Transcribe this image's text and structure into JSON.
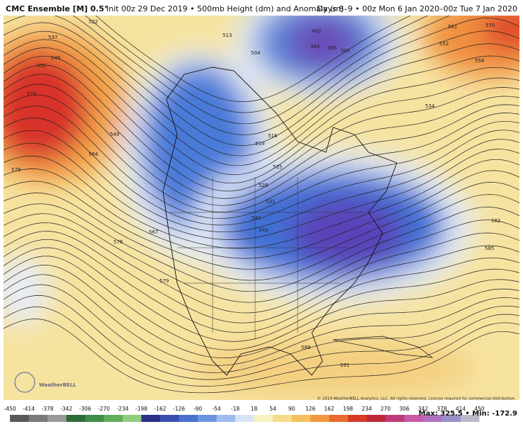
{
  "header": {
    "title": "CMC Ensemble [M] 0.5°",
    "subtitle": "Init 00z 29 Dec 2019 • 500mb Height (dm) and Anomaly (m)",
    "valid": "Days 8–9 • 00z Mon 6 Jan 2020–00z Tue 7 Jan 2020"
  },
  "map": {
    "contour_labels": [
      "522",
      "537",
      "546",
      "555",
      "573",
      "579",
      "564",
      "549",
      "513",
      "504",
      "492",
      "483",
      "495",
      "501",
      "561",
      "570",
      "552",
      "558",
      "534",
      "516",
      "519",
      "525",
      "528",
      "531",
      "540",
      "543",
      "567",
      "576",
      "579",
      "582",
      "585",
      "588",
      "591"
    ]
  },
  "colorbar": {
    "ticks": [
      -450,
      -414,
      -378,
      -342,
      -306,
      -270,
      -234,
      -198,
      -162,
      -126,
      -90,
      -54,
      -18,
      18,
      54,
      90,
      126,
      162,
      198,
      234,
      270,
      306,
      342,
      378,
      414,
      450
    ]
  },
  "footer": {
    "stats": "Max: 325.5 • Min: -172.9",
    "copyright": "© 2019 WeatherBELL Analytics, LLC. All rights reserved. License required for commercial distribution.",
    "logo": "WeatherBELL"
  }
}
